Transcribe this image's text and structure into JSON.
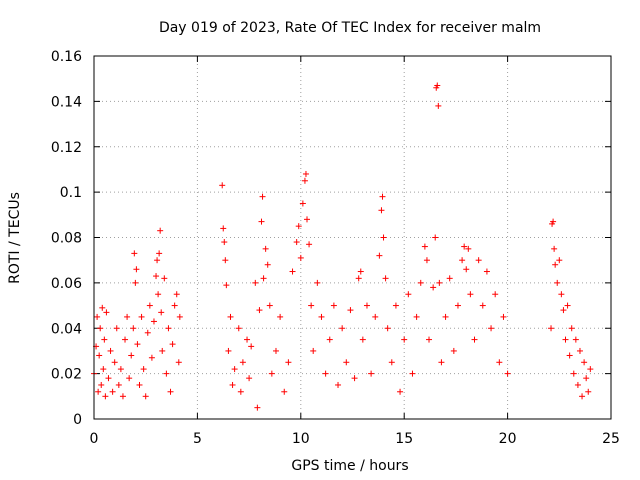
{
  "chart_data": {
    "type": "scatter",
    "title": "Day 019 of 2023, Rate Of TEC Index for receiver malm",
    "xlabel": "GPS time / hours",
    "ylabel": "ROTI / TECUs",
    "xlim": [
      0,
      25
    ],
    "ylim": [
      0,
      0.16
    ],
    "xticks": [
      0,
      5,
      10,
      15,
      20,
      25
    ],
    "xtick_labels": [
      "0",
      "5",
      "10",
      "15",
      "20",
      "25"
    ],
    "yticks": [
      0,
      0.02,
      0.04,
      0.06,
      0.08,
      0.1,
      0.12,
      0.14,
      0.16
    ],
    "ytick_labels": [
      "0",
      "0.02",
      "0.04",
      "0.06",
      "0.08",
      "0.1",
      "0.12",
      "0.14",
      "0.16"
    ],
    "grid": true,
    "marker": "+",
    "color": "#ff0000",
    "points": [
      [
        0.0,
        0.02
      ],
      [
        0.1,
        0.032
      ],
      [
        0.15,
        0.045
      ],
      [
        0.2,
        0.012
      ],
      [
        0.25,
        0.028
      ],
      [
        0.3,
        0.04
      ],
      [
        0.35,
        0.015
      ],
      [
        0.4,
        0.049
      ],
      [
        0.45,
        0.022
      ],
      [
        0.5,
        0.035
      ],
      [
        0.55,
        0.01
      ],
      [
        0.6,
        0.047
      ],
      [
        0.7,
        0.018
      ],
      [
        0.8,
        0.03
      ],
      [
        0.9,
        0.012
      ],
      [
        1.0,
        0.025
      ],
      [
        1.1,
        0.04
      ],
      [
        1.2,
        0.015
      ],
      [
        1.3,
        0.022
      ],
      [
        1.4,
        0.01
      ],
      [
        1.5,
        0.035
      ],
      [
        1.6,
        0.045
      ],
      [
        1.7,
        0.018
      ],
      [
        1.8,
        0.028
      ],
      [
        1.9,
        0.04
      ],
      [
        1.95,
        0.073
      ],
      [
        2.0,
        0.06
      ],
      [
        2.05,
        0.066
      ],
      [
        2.1,
        0.033
      ],
      [
        2.2,
        0.015
      ],
      [
        2.3,
        0.045
      ],
      [
        2.4,
        0.022
      ],
      [
        2.5,
        0.01
      ],
      [
        2.6,
        0.038
      ],
      [
        2.7,
        0.05
      ],
      [
        2.8,
        0.027
      ],
      [
        2.9,
        0.043
      ],
      [
        3.0,
        0.063
      ],
      [
        3.05,
        0.07
      ],
      [
        3.1,
        0.055
      ],
      [
        3.15,
        0.073
      ],
      [
        3.2,
        0.083
      ],
      [
        3.25,
        0.047
      ],
      [
        3.3,
        0.03
      ],
      [
        3.4,
        0.062
      ],
      [
        3.5,
        0.02
      ],
      [
        3.6,
        0.04
      ],
      [
        3.7,
        0.012
      ],
      [
        3.8,
        0.033
      ],
      [
        3.9,
        0.05
      ],
      [
        4.0,
        0.055
      ],
      [
        4.1,
        0.025
      ],
      [
        4.15,
        0.045
      ],
      [
        6.2,
        0.103
      ],
      [
        6.25,
        0.084
      ],
      [
        6.3,
        0.078
      ],
      [
        6.35,
        0.07
      ],
      [
        6.4,
        0.059
      ],
      [
        6.5,
        0.03
      ],
      [
        6.6,
        0.045
      ],
      [
        6.7,
        0.015
      ],
      [
        6.8,
        0.022
      ],
      [
        7.0,
        0.04
      ],
      [
        7.1,
        0.012
      ],
      [
        7.2,
        0.025
      ],
      [
        7.4,
        0.035
      ],
      [
        7.5,
        0.018
      ],
      [
        7.6,
        0.032
      ],
      [
        7.8,
        0.06
      ],
      [
        7.9,
        0.005
      ],
      [
        8.0,
        0.048
      ],
      [
        8.1,
        0.087
      ],
      [
        8.15,
        0.098
      ],
      [
        8.2,
        0.062
      ],
      [
        8.3,
        0.075
      ],
      [
        8.4,
        0.068
      ],
      [
        8.5,
        0.05
      ],
      [
        8.6,
        0.02
      ],
      [
        8.8,
        0.03
      ],
      [
        9.0,
        0.045
      ],
      [
        9.2,
        0.012
      ],
      [
        9.4,
        0.025
      ],
      [
        9.6,
        0.065
      ],
      [
        9.8,
        0.078
      ],
      [
        9.9,
        0.085
      ],
      [
        10.0,
        0.071
      ],
      [
        10.1,
        0.095
      ],
      [
        10.2,
        0.105
      ],
      [
        10.25,
        0.108
      ],
      [
        10.3,
        0.088
      ],
      [
        10.4,
        0.077
      ],
      [
        10.5,
        0.05
      ],
      [
        10.6,
        0.03
      ],
      [
        10.8,
        0.06
      ],
      [
        11.0,
        0.045
      ],
      [
        11.2,
        0.02
      ],
      [
        11.4,
        0.035
      ],
      [
        11.6,
        0.05
      ],
      [
        11.8,
        0.015
      ],
      [
        12.0,
        0.04
      ],
      [
        12.2,
        0.025
      ],
      [
        12.4,
        0.048
      ],
      [
        12.6,
        0.018
      ],
      [
        12.8,
        0.062
      ],
      [
        12.9,
        0.065
      ],
      [
        13.0,
        0.035
      ],
      [
        13.2,
        0.05
      ],
      [
        13.4,
        0.02
      ],
      [
        13.6,
        0.045
      ],
      [
        13.8,
        0.072
      ],
      [
        13.9,
        0.092
      ],
      [
        13.95,
        0.098
      ],
      [
        14.0,
        0.08
      ],
      [
        14.1,
        0.062
      ],
      [
        14.2,
        0.04
      ],
      [
        14.4,
        0.025
      ],
      [
        14.6,
        0.05
      ],
      [
        14.8,
        0.012
      ],
      [
        15.0,
        0.035
      ],
      [
        15.2,
        0.055
      ],
      [
        15.4,
        0.02
      ],
      [
        15.6,
        0.045
      ],
      [
        15.8,
        0.06
      ],
      [
        16.0,
        0.076
      ],
      [
        16.1,
        0.07
      ],
      [
        16.2,
        0.035
      ],
      [
        16.4,
        0.058
      ],
      [
        16.5,
        0.08
      ],
      [
        16.55,
        0.146
      ],
      [
        16.6,
        0.147
      ],
      [
        16.65,
        0.138
      ],
      [
        16.7,
        0.06
      ],
      [
        16.8,
        0.025
      ],
      [
        17.0,
        0.045
      ],
      [
        17.2,
        0.062
      ],
      [
        17.4,
        0.03
      ],
      [
        17.6,
        0.05
      ],
      [
        17.8,
        0.07
      ],
      [
        17.9,
        0.076
      ],
      [
        18.0,
        0.066
      ],
      [
        18.1,
        0.075
      ],
      [
        18.2,
        0.055
      ],
      [
        18.4,
        0.035
      ],
      [
        18.6,
        0.07
      ],
      [
        18.8,
        0.05
      ],
      [
        19.0,
        0.065
      ],
      [
        19.2,
        0.04
      ],
      [
        19.4,
        0.055
      ],
      [
        19.6,
        0.025
      ],
      [
        19.8,
        0.045
      ],
      [
        20.0,
        0.02
      ],
      [
        22.1,
        0.04
      ],
      [
        22.15,
        0.086
      ],
      [
        22.2,
        0.087
      ],
      [
        22.25,
        0.075
      ],
      [
        22.3,
        0.068
      ],
      [
        22.4,
        0.06
      ],
      [
        22.5,
        0.07
      ],
      [
        22.6,
        0.055
      ],
      [
        22.7,
        0.048
      ],
      [
        22.8,
        0.035
      ],
      [
        22.9,
        0.05
      ],
      [
        23.0,
        0.028
      ],
      [
        23.1,
        0.04
      ],
      [
        23.2,
        0.02
      ],
      [
        23.3,
        0.035
      ],
      [
        23.4,
        0.015
      ],
      [
        23.5,
        0.03
      ],
      [
        23.6,
        0.01
      ],
      [
        23.7,
        0.025
      ],
      [
        23.8,
        0.018
      ],
      [
        23.9,
        0.012
      ],
      [
        24.0,
        0.022
      ]
    ]
  }
}
